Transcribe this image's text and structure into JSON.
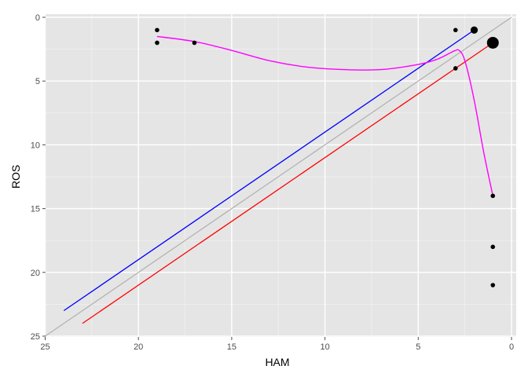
{
  "chart_data": {
    "type": "scatter",
    "xlabel": "HAM",
    "ylabel": "ROS",
    "xlim": [
      25,
      0
    ],
    "ylim": [
      0,
      25
    ],
    "x_reversed": true,
    "y_reversed": true,
    "grid": true,
    "x_ticks": [
      25,
      20,
      15,
      10,
      5,
      0
    ],
    "y_ticks": [
      0,
      5,
      10,
      15,
      20,
      25
    ],
    "x_tick_labels": [
      "25",
      "20",
      "15",
      "10",
      "5",
      "0"
    ],
    "y_tick_labels": [
      "0",
      "5",
      "10",
      "15",
      "20",
      "25"
    ],
    "points": [
      {
        "x": 19,
        "y": 1,
        "size": 1
      },
      {
        "x": 19,
        "y": 2,
        "size": 1
      },
      {
        "x": 17,
        "y": 2,
        "size": 1
      },
      {
        "x": 3,
        "y": 1,
        "size": 1
      },
      {
        "x": 3,
        "y": 4,
        "size": 1
      },
      {
        "x": 2,
        "y": 1,
        "size": 2
      },
      {
        "x": 1,
        "y": 2,
        "size": 4
      },
      {
        "x": 1,
        "y": 14,
        "size": 1
      },
      {
        "x": 1,
        "y": 18,
        "size": 1
      },
      {
        "x": 1,
        "y": 21,
        "size": 1
      }
    ],
    "lines": [
      {
        "kind": "identity",
        "color": "#b3b3b3",
        "x": [
          25,
          0
        ],
        "y": [
          25,
          0
        ]
      },
      {
        "kind": "upper-offset",
        "color": "#0000ff",
        "x": [
          24,
          2
        ],
        "y": [
          23,
          1
        ]
      },
      {
        "kind": "lower-offset",
        "color": "#ff0000",
        "x": [
          23,
          1
        ],
        "y": [
          24,
          2
        ]
      }
    ],
    "smooth": {
      "color": "#ff00ff",
      "x": [
        19,
        17,
        15,
        13,
        11,
        9,
        7,
        5,
        4,
        3.3,
        3.0,
        2.8,
        2.5,
        2.0,
        1.5,
        1.0
      ],
      "y": [
        1.5,
        1.9,
        2.6,
        3.4,
        3.9,
        4.1,
        4.1,
        3.7,
        3.3,
        2.8,
        2.6,
        2.6,
        3.4,
        6.5,
        10.5,
        14.0
      ]
    },
    "colors": {
      "panel_bg": "#e5e5e5",
      "grid_major": "#ffffff",
      "grid_minor": "#f2f2f2",
      "points": "#000000"
    }
  }
}
